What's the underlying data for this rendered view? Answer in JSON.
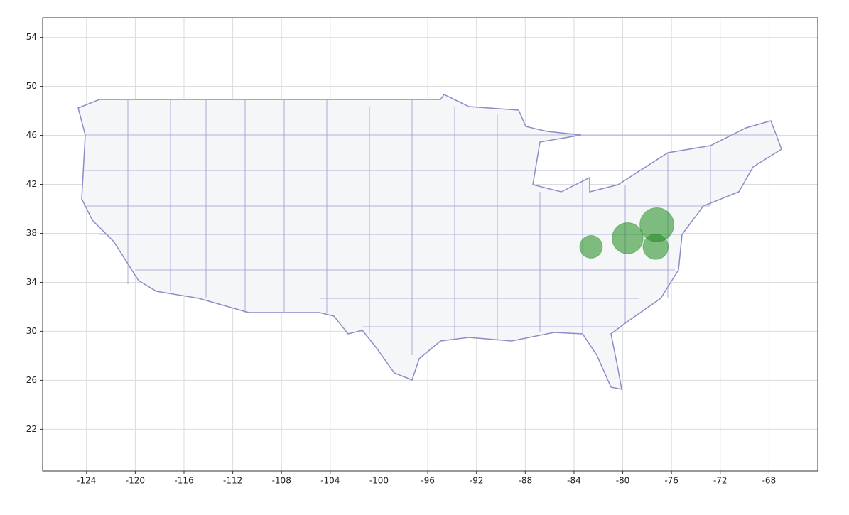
{
  "chart_data": {
    "type": "scatter",
    "x": [
      -82.6,
      -79.6,
      -77.2,
      -77.3
    ],
    "values": [
      36.9,
      37.6,
      38.7,
      36.9
    ],
    "sizes": [
      800,
      1500,
      1800,
      1000
    ],
    "color": "#1a8a1a",
    "xlim": [
      -127.6,
      -64.0
    ],
    "ylim": [
      18.6,
      55.6
    ],
    "xticks": [
      -124,
      -120,
      -116,
      -112,
      -108,
      -104,
      -100,
      -96,
      -92,
      -88,
      -84,
      -80,
      -76,
      -72,
      -68
    ],
    "yticks": [
      22,
      26,
      30,
      34,
      38,
      42,
      46,
      50,
      54
    ],
    "grid": true
  }
}
